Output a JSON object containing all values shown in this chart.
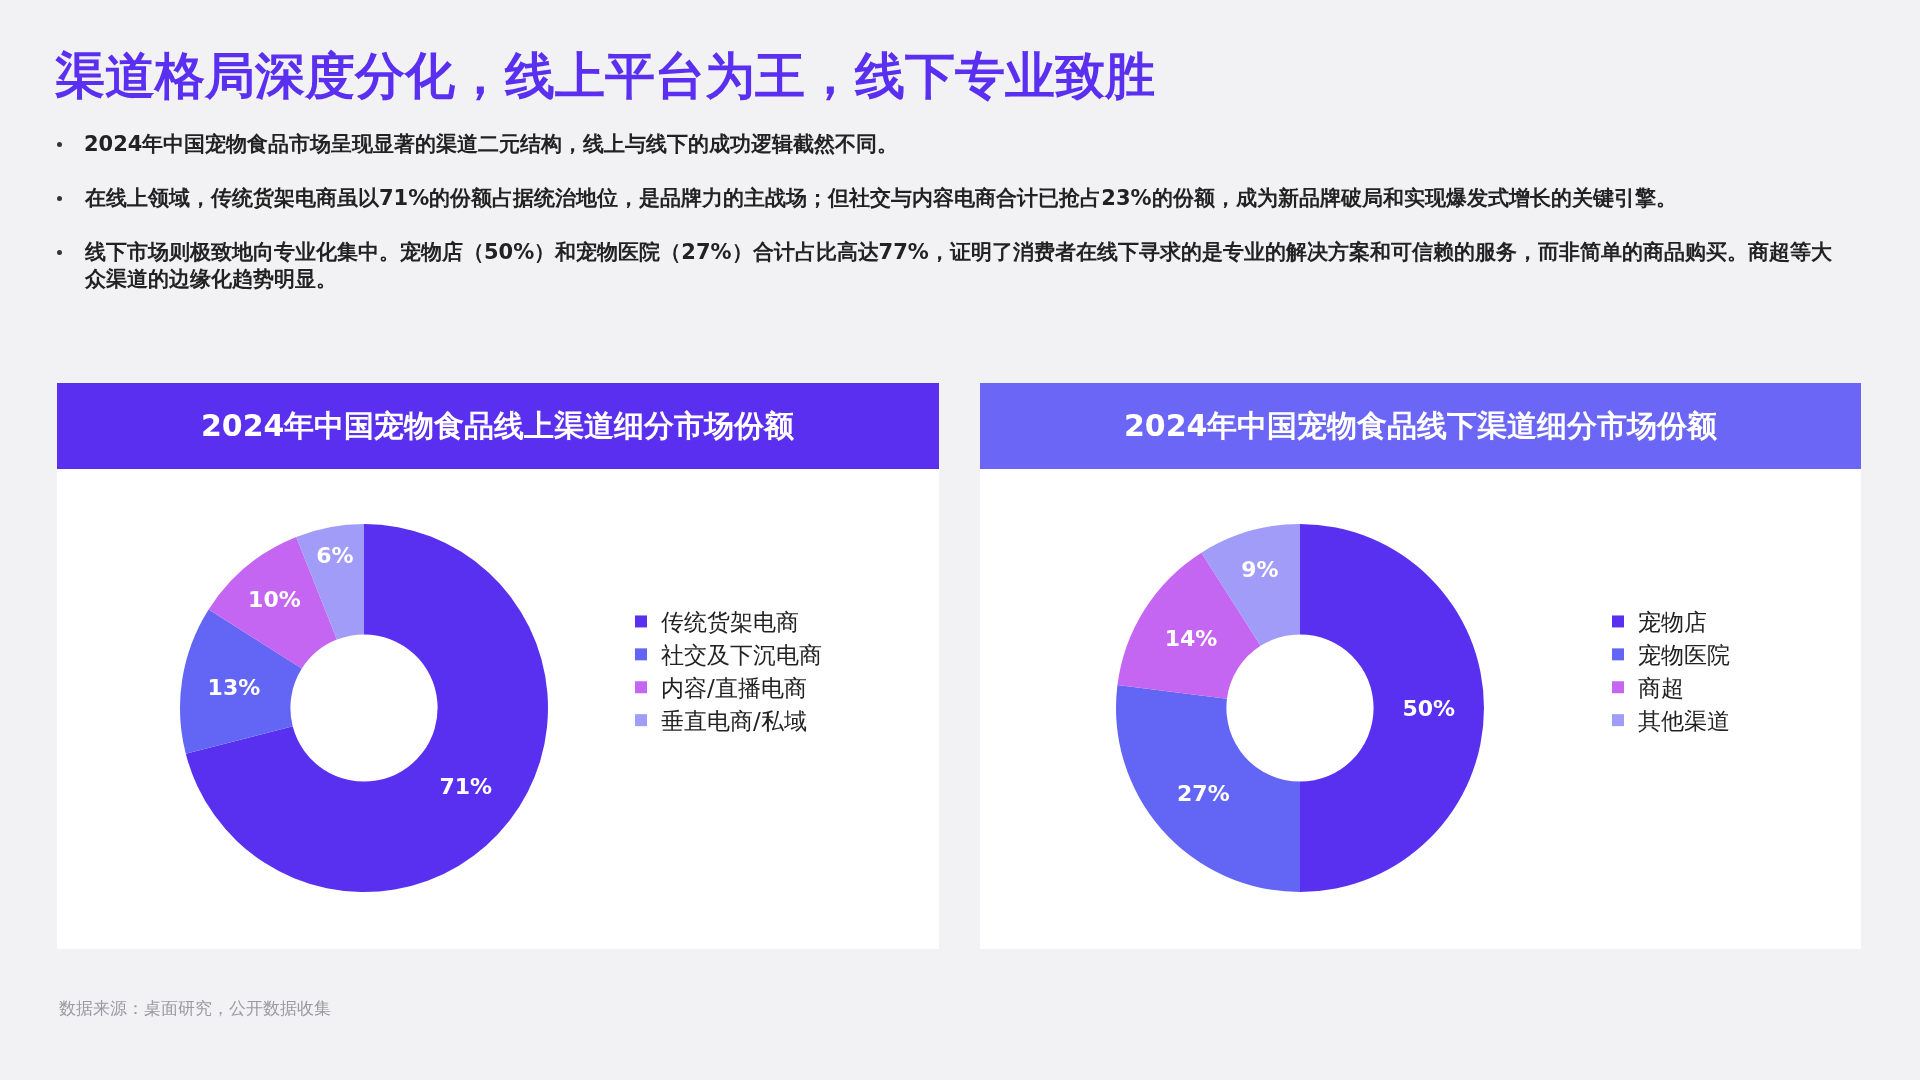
{
  "chart_data": [
    {
      "type": "donut",
      "title": "2024年中国宠物食品线上渠道细分市场份额",
      "annotations": [
        "渠道格局深度分化，线上平台为王，线下专业致胜",
        "2024年中国宠物食品市场呈现显著的渠道二元结构，线上与线下的成功逻辑截然不同。",
        "在线上领域，传统货架电商虽以71%的份额占据统治地位，是品牌力的主战场；但社交与内容电商合计已抢占23%的份额，成为新品牌破局和实现爆发式增长的关键引擎。",
        "线下市场则极致地向专业化集中。宠物店（50%）和宠物医院（27%）合计占比高达77%，证明了消费者在线下寻求的是专业的解决方案和可信赖的服务，而非简单的商品购买。商超等大众渠道的边缘化趋势明显。",
        "数据来源：桌面研究，公开数据收集"
      ],
      "categories": [
        "传统货架电商",
        "社交及下沉电商",
        "内容/直播电商",
        "垂直电商/私域"
      ],
      "values": [
        71,
        13,
        10,
        6
      ],
      "value_labels": [
        "71%",
        "13%",
        "10%",
        "6%"
      ],
      "colors": [
        "#5a30f0",
        "#6366f5",
        "#c466f2",
        "#a09cf8"
      ],
      "legend": "right"
    },
    {
      "type": "donut",
      "title": "2024年中国宠物食品线下渠道细分市场份额",
      "categories": [
        "宠物店",
        "宠物医院",
        "商超",
        "其他渠道"
      ],
      "values": [
        50,
        27,
        14,
        9
      ],
      "value_labels": [
        "50%",
        "27%",
        "14%",
        "9%"
      ],
      "colors": [
        "#5a30f0",
        "#6366f5",
        "#c466f2",
        "#a09cf8"
      ],
      "legend": "right"
    }
  ]
}
